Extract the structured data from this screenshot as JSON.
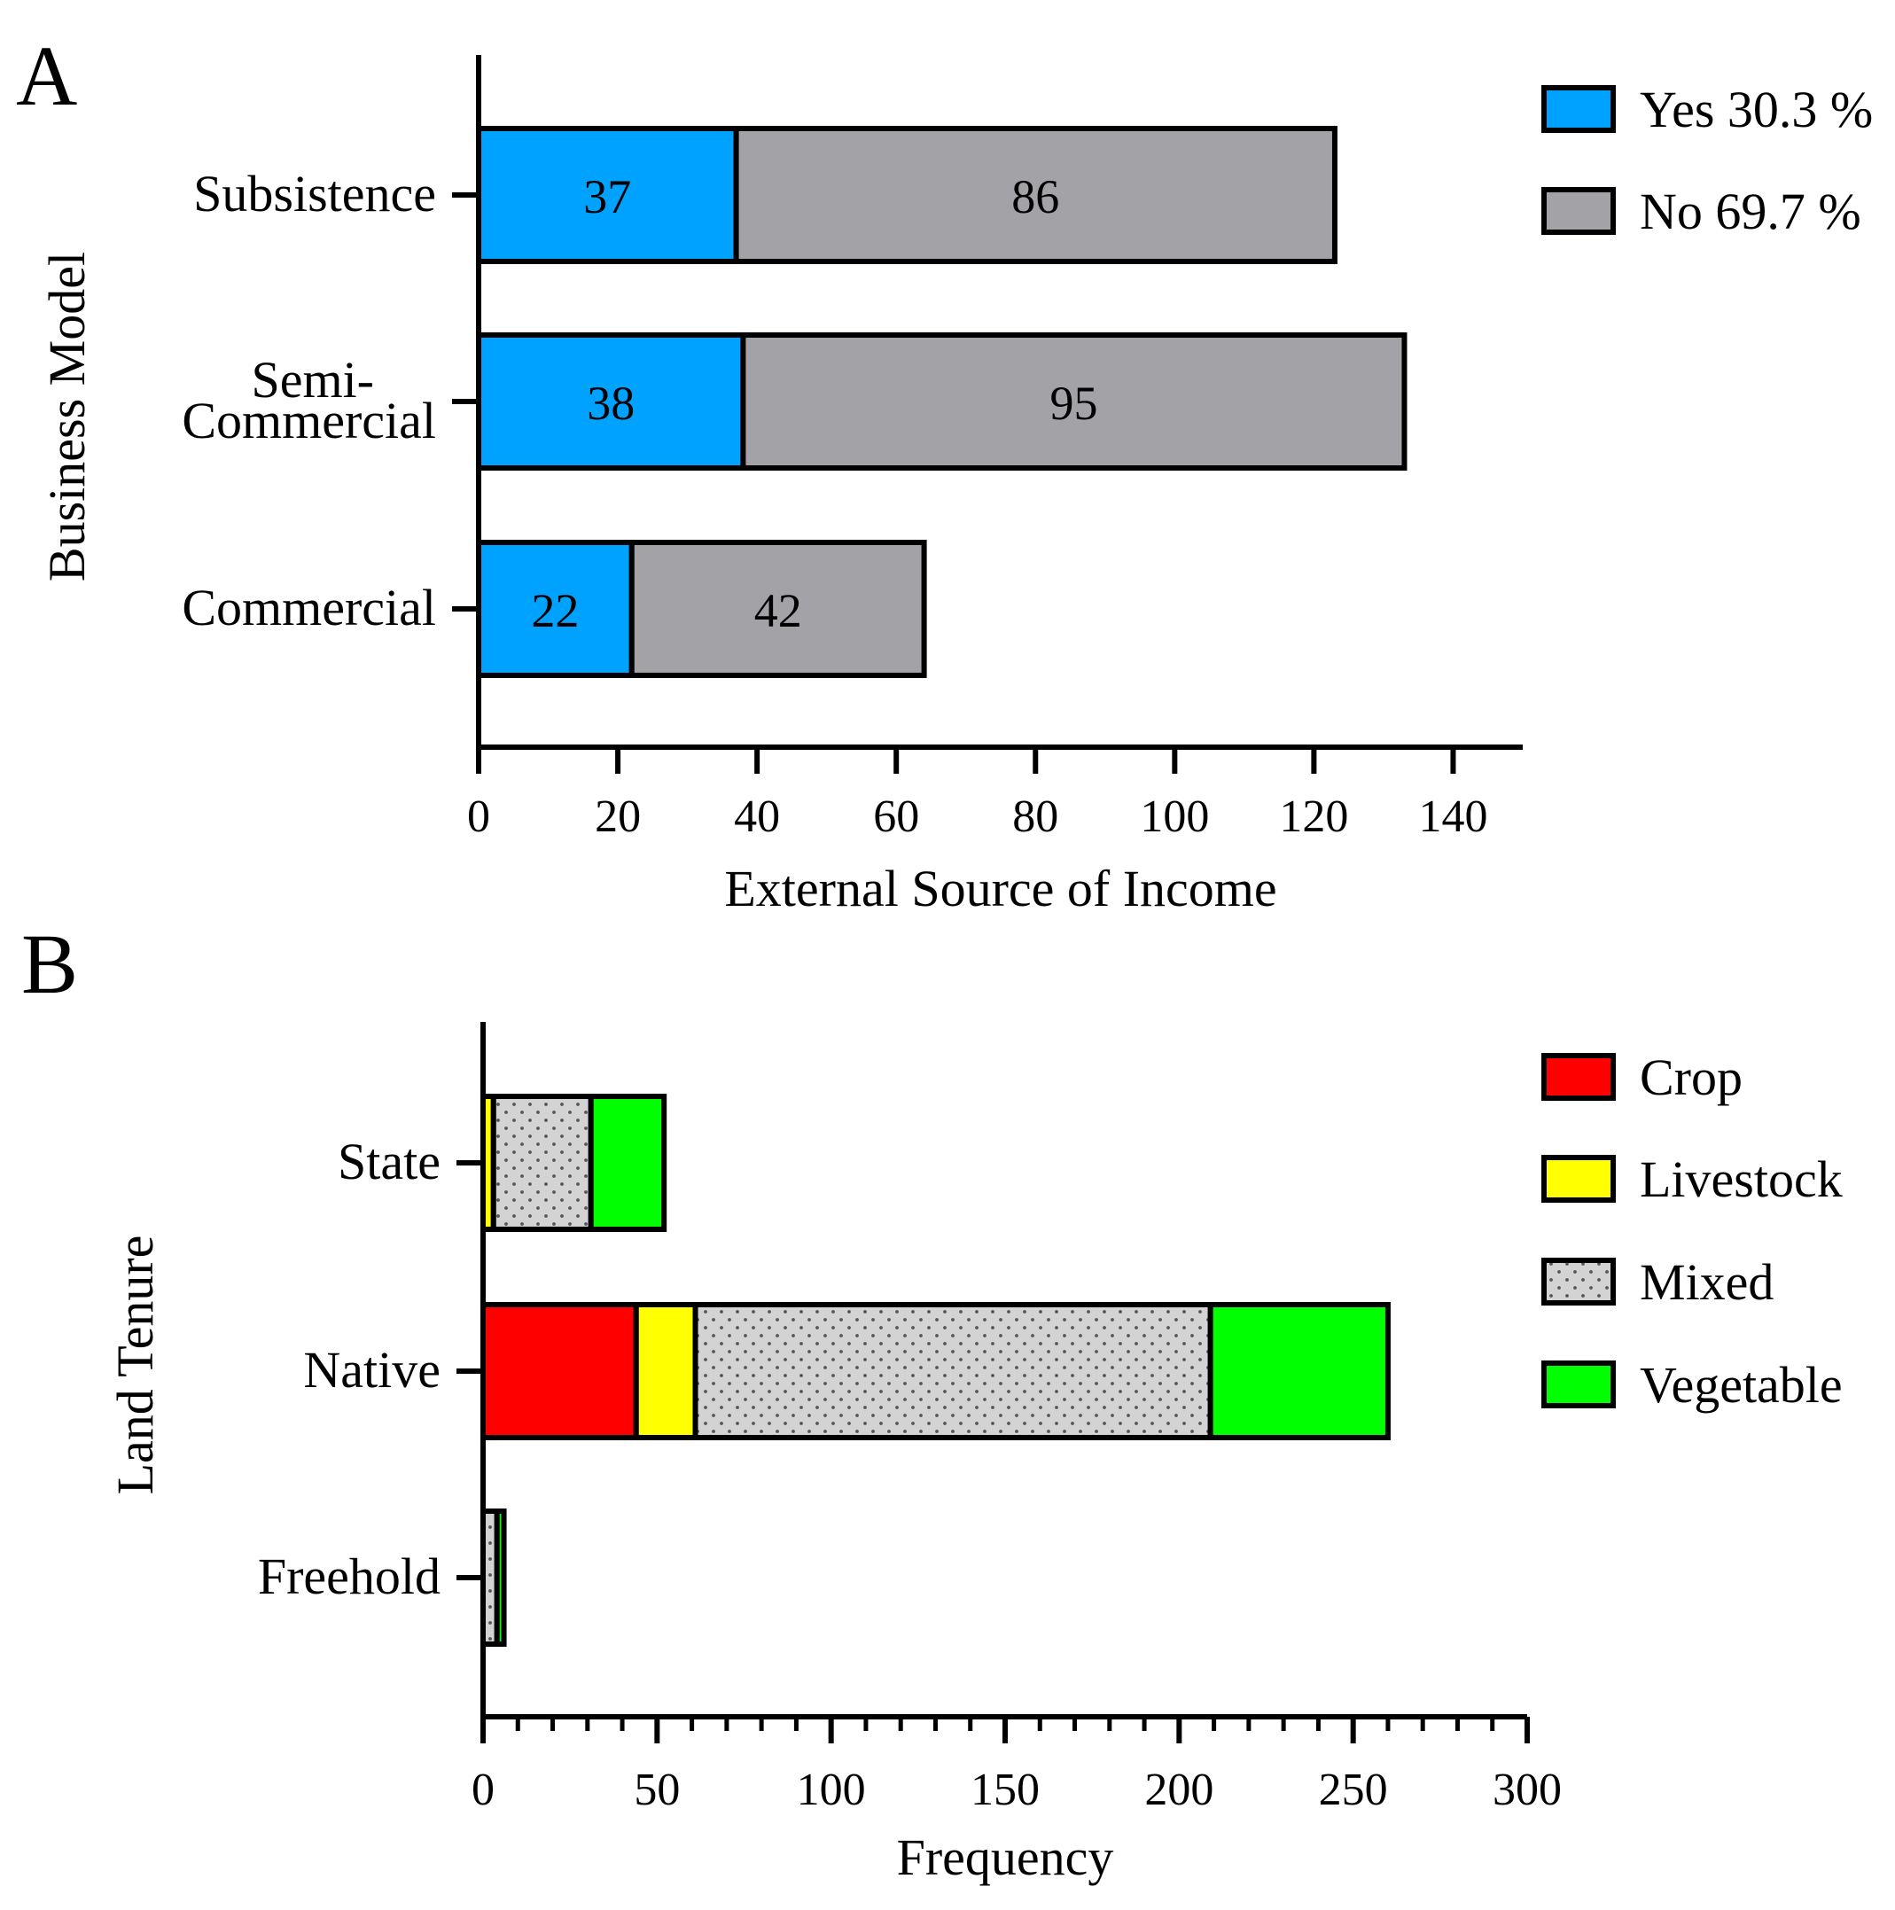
{
  "chart_data": [
    {
      "panel": "A",
      "type": "bar",
      "orientation": "horizontal",
      "stacked": true,
      "categories": [
        "Subsistence",
        "Semi-\nCommercial",
        "Commercial"
      ],
      "series": [
        {
          "name": "Yes 30.3 %",
          "values": [
            37,
            38,
            22
          ],
          "color": "#00a2ff"
        },
        {
          "name": "No 69.7 %",
          "values": [
            86,
            95,
            42
          ],
          "color": "#a3a2a6"
        }
      ],
      "data_labels": true,
      "xlabel": "External Source of Income",
      "ylabel": "Business Model",
      "xlim": [
        0,
        150
      ],
      "xticks": [
        0,
        20,
        40,
        60,
        80,
        100,
        120,
        140
      ],
      "legend": "top-right",
      "grid": false
    },
    {
      "panel": "B",
      "type": "bar",
      "orientation": "horizontal",
      "stacked": true,
      "categories": [
        "State",
        "Native",
        "Freehold"
      ],
      "series": [
        {
          "name": "Crop",
          "values": [
            0,
            44,
            0
          ],
          "color": "#ff0000",
          "pattern": "solid"
        },
        {
          "name": "Livestock",
          "values": [
            3,
            17,
            0
          ],
          "color": "#ffff00",
          "pattern": "solid"
        },
        {
          "name": "Mixed",
          "values": [
            28,
            148,
            4
          ],
          "color": "#d3d3d3",
          "pattern": "dotted"
        },
        {
          "name": "Vegetable",
          "values": [
            21,
            51,
            2
          ],
          "color": "#00ff00",
          "pattern": "solid"
        }
      ],
      "data_labels": false,
      "xlabel": "Frequency",
      "ylabel": "Land Tenure",
      "xlim": [
        0,
        300
      ],
      "xticks": [
        0,
        50,
        100,
        150,
        200,
        250,
        300
      ],
      "xminor_step": 10,
      "legend": "top-right",
      "grid": false
    }
  ]
}
